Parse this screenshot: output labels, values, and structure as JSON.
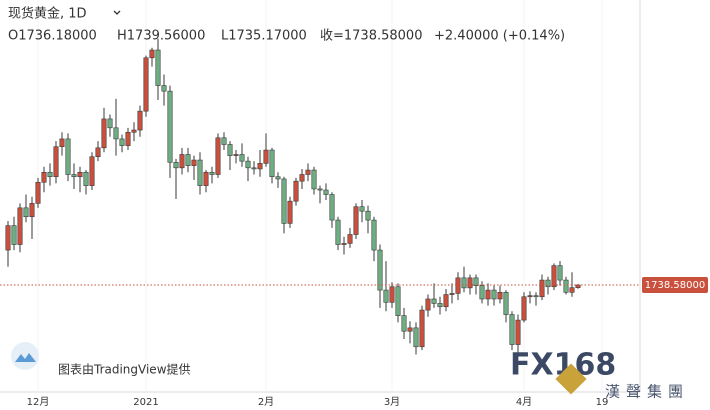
{
  "chart_data": {
    "type": "candlestick",
    "symbol": "现货黄金, 1D",
    "legend_text": [
      "O1736.18000",
      "H1739.56000",
      "L1735.17000",
      "收=1738.58000",
      "+2.40000 (+0.14%)"
    ],
    "last_price_label": "1738.58000",
    "attribution": "图表由TradingView提供",
    "watermark": [
      "FX168",
      "漢聲集團"
    ],
    "up_color": "#c8503c",
    "down_color": "#6fae83",
    "ylim": [
      1648.6,
      1995
    ],
    "categories": [
      null,
      null,
      null,
      null,
      null,
      "12月",
      null,
      null,
      null,
      null,
      null,
      null,
      null,
      null,
      null,
      null,
      null,
      null,
      null,
      null,
      null,
      null,
      null,
      "2021",
      null,
      null,
      null,
      null,
      null,
      null,
      null,
      null,
      null,
      null,
      null,
      null,
      null,
      null,
      null,
      null,
      null,
      null,
      null,
      "2月",
      null,
      null,
      null,
      null,
      null,
      null,
      null,
      null,
      null,
      null,
      null,
      null,
      null,
      null,
      null,
      null,
      null,
      null,
      null,
      null,
      "3月",
      null,
      null,
      null,
      null,
      null,
      null,
      null,
      null,
      null,
      null,
      null,
      null,
      null,
      null,
      null,
      null,
      null,
      null,
      null,
      null,
      null,
      "4月",
      null,
      null,
      null,
      null,
      null,
      null,
      null,
      null,
      null,
      null,
      null,
      null,
      "19"
    ],
    "open": [
      1770,
      1792,
      1775,
      1808,
      1800,
      1812,
      1831,
      1840,
      1836,
      1863,
      1870,
      1838,
      1836,
      1840,
      1828,
      1854,
      1862,
      1888,
      1880,
      1870,
      1864,
      1876,
      1878,
      1895,
      1943,
      1950,
      1918,
      1913,
      1849,
      1844,
      1856,
      1846,
      1851,
      1828,
      1840,
      1838,
      1871,
      1865,
      1855,
      1856,
      1850,
      1844,
      1843,
      1848,
      1860,
      1836,
      1834,
      1794,
      1814,
      1832,
      1838,
      1842,
      1825,
      1824,
      1820,
      1797,
      1775,
      1776,
      1784,
      1809,
      1805,
      1797,
      1770,
      1734,
      1723,
      1737,
      1711,
      1697,
      1700,
      1683,
      1716,
      1726,
      1722,
      1719,
      1730,
      1731,
      1745,
      1736,
      1745,
      1738,
      1726,
      1734,
      1726,
      1732,
      1712,
      1685,
      1707,
      1728,
      1729,
      1728,
      1743,
      1737,
      1756,
      1743,
      1732,
      1736.18,
      null,
      null,
      null,
      null
    ],
    "high": [
      1796,
      1800,
      1812,
      1820,
      1818,
      1835,
      1845,
      1848,
      1868,
      1876,
      1875,
      1848,
      1845,
      1842,
      1858,
      1868,
      1898,
      1892,
      1906,
      1874,
      1880,
      1885,
      1900,
      1945,
      1952,
      1960,
      1928,
      1918,
      1852,
      1862,
      1862,
      1855,
      1858,
      1842,
      1845,
      1875,
      1876,
      1868,
      1860,
      1866,
      1854,
      1850,
      1860,
      1875,
      1862,
      1840,
      1836,
      1818,
      1835,
      1843,
      1848,
      1845,
      1828,
      1830,
      1822,
      1800,
      1782,
      1790,
      1812,
      1815,
      1810,
      1800,
      1775,
      1760,
      1741,
      1740,
      1718,
      1706,
      1705,
      1720,
      1730,
      1740,
      1728,
      1735,
      1740,
      1750,
      1755,
      1748,
      1748,
      1742,
      1740,
      1738,
      1738,
      1734,
      1715,
      1712,
      1732,
      1733,
      1732,
      1748,
      1746,
      1758,
      1760,
      1746,
      1750,
      1739.56,
      null,
      null,
      null,
      null
    ],
    "low": [
      1755,
      1770,
      1768,
      1795,
      1780,
      1808,
      1822,
      1828,
      1830,
      1855,
      1832,
      1825,
      1822,
      1820,
      1824,
      1850,
      1858,
      1872,
      1855,
      1858,
      1860,
      1868,
      1872,
      1890,
      1935,
      1905,
      1900,
      1835,
      1816,
      1838,
      1840,
      1833,
      1820,
      1822,
      1830,
      1835,
      1860,
      1842,
      1848,
      1845,
      1832,
      1838,
      1836,
      1845,
      1830,
      1826,
      1785,
      1790,
      1810,
      1825,
      1832,
      1820,
      1812,
      1815,
      1790,
      1770,
      1766,
      1772,
      1780,
      1795,
      1785,
      1760,
      1718,
      1715,
      1718,
      1705,
      1690,
      1686,
      1676,
      1680,
      1710,
      1718,
      1712,
      1715,
      1722,
      1725,
      1732,
      1730,
      1730,
      1722,
      1720,
      1720,
      1722,
      1705,
      1680,
      1678,
      1705,
      1722,
      1720,
      1725,
      1730,
      1734,
      1738,
      1730,
      1728,
      1735.17,
      null,
      null,
      null,
      null
    ],
    "close": [
      1792,
      1775,
      1808,
      1800,
      1812,
      1831,
      1840,
      1836,
      1863,
      1870,
      1838,
      1836,
      1840,
      1828,
      1854,
      1862,
      1888,
      1880,
      1870,
      1864,
      1876,
      1878,
      1895,
      1943,
      1950,
      1918,
      1913,
      1849,
      1844,
      1856,
      1846,
      1851,
      1828,
      1840,
      1838,
      1871,
      1865,
      1855,
      1856,
      1850,
      1844,
      1843,
      1848,
      1860,
      1836,
      1834,
      1794,
      1814,
      1832,
      1838,
      1842,
      1825,
      1824,
      1820,
      1797,
      1775,
      1776,
      1784,
      1809,
      1805,
      1797,
      1770,
      1734,
      1723,
      1737,
      1711,
      1697,
      1700,
      1683,
      1716,
      1726,
      1722,
      1719,
      1730,
      1731,
      1745,
      1736,
      1745,
      1738,
      1726,
      1734,
      1726,
      1732,
      1712,
      1685,
      1707,
      1728,
      1729,
      1728,
      1743,
      1737,
      1756,
      1743,
      1732,
      1736.18,
      1738.58,
      null,
      null,
      null,
      null
    ]
  }
}
